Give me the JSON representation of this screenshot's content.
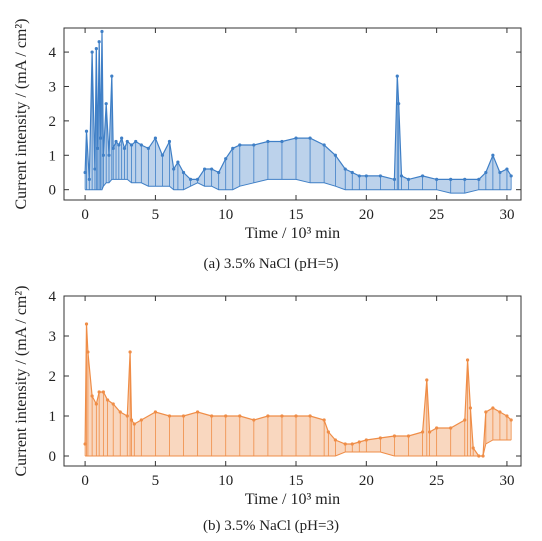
{
  "chart_data": [
    {
      "type": "line",
      "title": "",
      "caption": "(a) 3.5% NaCl (pH=5)",
      "xlabel": "Time / 10³ min",
      "ylabel": "Current intensity / (mA / cm²)",
      "xlim": [
        -1.5,
        31
      ],
      "ylim": [
        -0.3,
        4.7
      ],
      "xticks": [
        0,
        5,
        10,
        15,
        20,
        25,
        30
      ],
      "yticks": [
        0,
        1,
        2,
        3,
        4
      ],
      "grid": false,
      "legend": "none",
      "color": "#3f7fc6",
      "series": [
        {
          "x": [
            0,
            0.1,
            0.3,
            0.5,
            0.7,
            0.8,
            0.9,
            1.0,
            1.1,
            1.2,
            1.3,
            1.5,
            1.7,
            1.9,
            2.0,
            2.2,
            2.4,
            2.6,
            2.8,
            3.0,
            3.3,
            3.6,
            4.0,
            4.5,
            5.0,
            5.5,
            6.0,
            6.3,
            6.6,
            7.0,
            7.5,
            8.0,
            8.5,
            9.0,
            9.5,
            10.0,
            10.5,
            11.0,
            12.0,
            13.0,
            14.0,
            15.0,
            16.0,
            17.0,
            17.8,
            18.5,
            19.0,
            19.5,
            20.0,
            21.0,
            22.0,
            22.2,
            22.3,
            22.5,
            23.0,
            24.0,
            25.0,
            26.0,
            27.0,
            28.0,
            28.5,
            29.0,
            29.5,
            30.0,
            30.3
          ],
          "y": [
            0.5,
            1.7,
            0.3,
            4.0,
            0.6,
            4.1,
            1.2,
            4.3,
            1.5,
            4.6,
            1.0,
            2.5,
            1.0,
            3.3,
            1.2,
            1.4,
            1.3,
            1.5,
            1.2,
            1.4,
            1.3,
            1.4,
            1.3,
            1.2,
            1.5,
            1.0,
            1.4,
            0.6,
            0.8,
            0.5,
            0.3,
            0.3,
            0.6,
            0.6,
            0.5,
            0.9,
            1.2,
            1.3,
            1.3,
            1.4,
            1.4,
            1.5,
            1.5,
            1.3,
            1.0,
            0.6,
            0.5,
            0.4,
            0.4,
            0.4,
            0.3,
            3.3,
            2.5,
            0.4,
            0.3,
            0.4,
            0.3,
            0.3,
            0.3,
            0.3,
            0.5,
            1.0,
            0.5,
            0.6,
            0.4
          ],
          "y_low": [
            0.0,
            0.0,
            0.0,
            0.0,
            0.0,
            0.0,
            0.0,
            0.0,
            0.0,
            0.0,
            0.1,
            0.2,
            0.2,
            0.3,
            0.3,
            0.3,
            0.3,
            0.3,
            0.3,
            0.3,
            0.2,
            0.2,
            0.2,
            0.1,
            0.1,
            0.1,
            0.1,
            0.0,
            0.0,
            0.0,
            0.1,
            0.2,
            0.1,
            0.1,
            0.0,
            0.0,
            0.0,
            0.1,
            0.2,
            0.3,
            0.3,
            0.3,
            0.2,
            0.2,
            0.1,
            0.0,
            0.0,
            0.0,
            0.0,
            0.0,
            0.0,
            0.0,
            0.0,
            0.0,
            0.0,
            0.0,
            0.0,
            -0.1,
            -0.1,
            0.0,
            0.0,
            0.0,
            0.0,
            0.0,
            0.0
          ]
        }
      ]
    },
    {
      "type": "line",
      "title": "",
      "caption": "(b) 3.5% NaCl (pH=3)",
      "xlabel": "Time / 10³ min",
      "ylabel": "Current intensity / (mA / cm²)",
      "xlim": [
        -1.5,
        31
      ],
      "ylim": [
        -0.25,
        4.0
      ],
      "xticks": [
        0,
        5,
        10,
        15,
        20,
        25,
        30
      ],
      "yticks": [
        0,
        1,
        2,
        3,
        4
      ],
      "grid": false,
      "legend": "none",
      "color": "#ef8d47",
      "series": [
        {
          "x": [
            0,
            0.1,
            0.2,
            0.5,
            0.8,
            1.0,
            1.3,
            1.6,
            2.0,
            2.5,
            3.0,
            3.2,
            3.3,
            3.5,
            4.0,
            5.0,
            6.0,
            7.0,
            8.0,
            9.0,
            10.0,
            11.0,
            12.0,
            13.0,
            14.0,
            15.0,
            16.0,
            17.0,
            17.3,
            17.8,
            18.5,
            19.0,
            19.5,
            20.0,
            21.0,
            22.0,
            23.0,
            24.0,
            24.3,
            24.5,
            25.0,
            26.0,
            27.0,
            27.2,
            27.4,
            27.6,
            28.0,
            28.3,
            28.5,
            29.0,
            29.5,
            30.0,
            30.3
          ],
          "y": [
            0.3,
            3.3,
            2.6,
            1.5,
            1.3,
            1.6,
            1.6,
            1.4,
            1.3,
            1.1,
            1.0,
            2.6,
            0.9,
            0.8,
            0.9,
            1.1,
            1.0,
            1.0,
            1.1,
            1.0,
            1.0,
            1.0,
            0.9,
            1.0,
            1.0,
            1.0,
            1.0,
            0.9,
            0.6,
            0.4,
            0.3,
            0.3,
            0.35,
            0.4,
            0.45,
            0.5,
            0.5,
            0.6,
            1.9,
            0.6,
            0.7,
            0.7,
            0.9,
            2.4,
            1.2,
            0.2,
            0.0,
            0.0,
            1.1,
            1.2,
            1.1,
            1.0,
            0.9
          ],
          "y_low": [
            0.0,
            0.0,
            0.0,
            0.0,
            0.0,
            0.0,
            0.0,
            0.0,
            0.0,
            0.0,
            0.0,
            0.0,
            0.0,
            0.0,
            0.0,
            0.0,
            0.0,
            0.0,
            0.0,
            0.0,
            0.0,
            0.0,
            0.0,
            0.0,
            0.0,
            0.0,
            0.0,
            0.0,
            0.0,
            0.0,
            0.1,
            0.1,
            0.1,
            0.1,
            0.1,
            0.0,
            0.0,
            0.0,
            0.0,
            0.0,
            0.0,
            0.0,
            0.0,
            0.0,
            0.0,
            0.0,
            0.0,
            0.0,
            0.3,
            0.4,
            0.4,
            0.4,
            0.4
          ]
        }
      ]
    }
  ]
}
